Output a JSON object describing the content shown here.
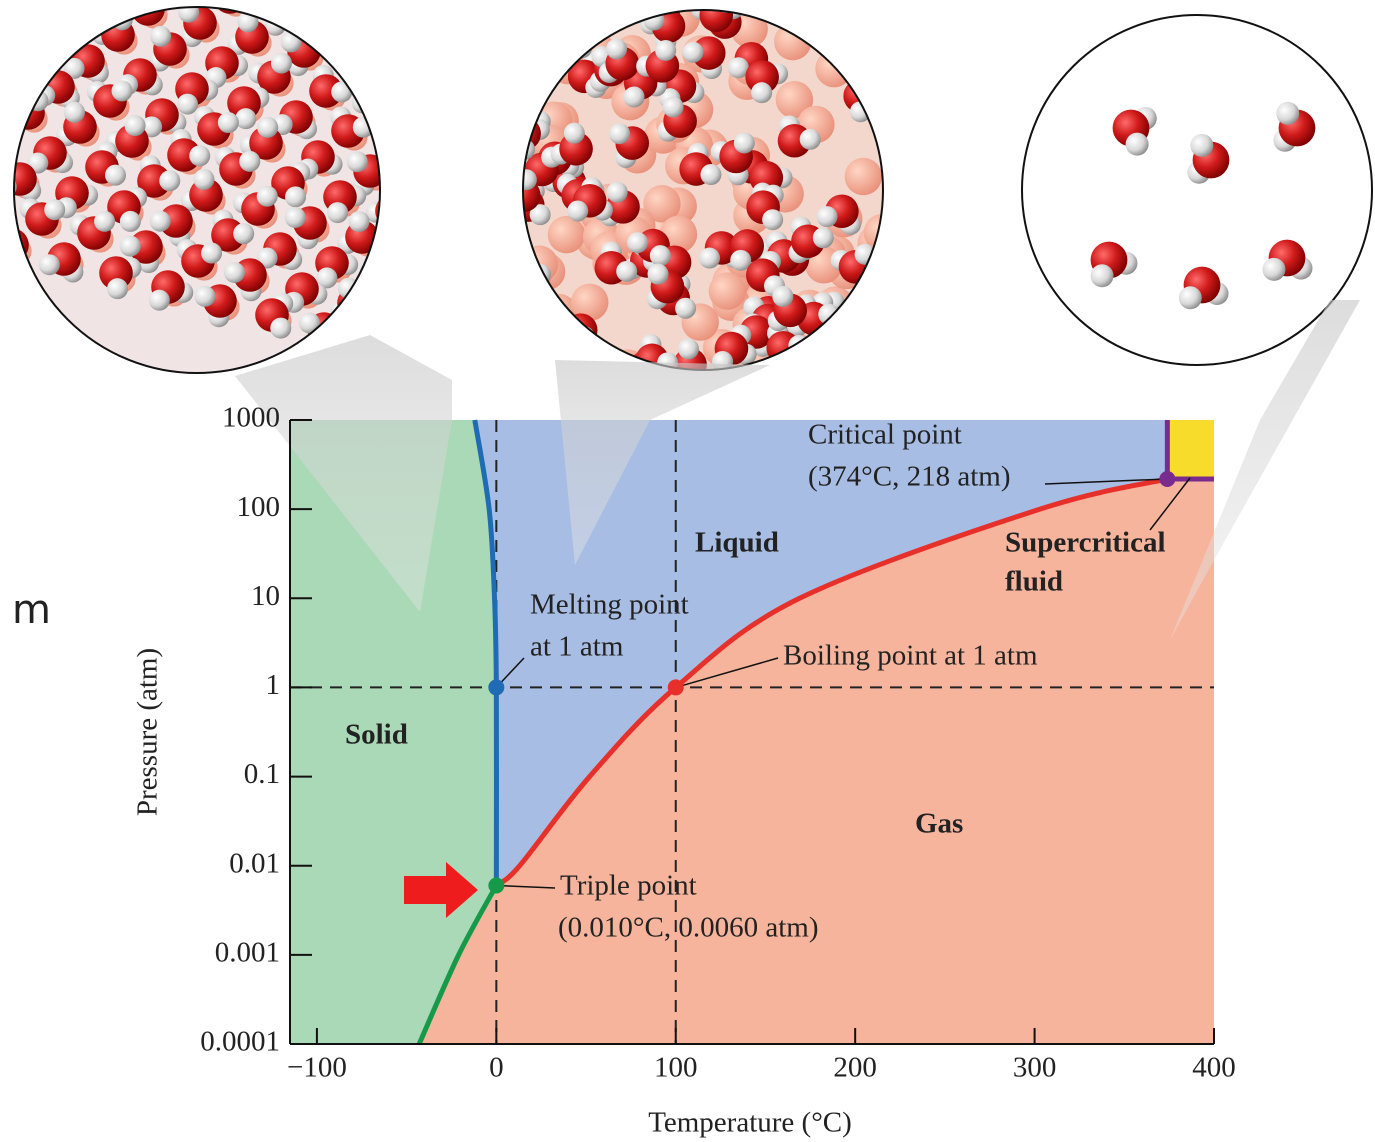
{
  "chart_data": {
    "type": "phase",
    "x_label": "Temperature (°C)",
    "y_label": "Pressure (atm)",
    "xlim": [
      -115,
      400
    ],
    "ylim": [
      0.0001,
      1000
    ],
    "log_y": true,
    "xticks": [
      {
        "value": -100,
        "label": "−100"
      },
      0,
      100,
      200,
      300,
      400
    ],
    "yticks": [
      0.0001,
      0.001,
      0.01,
      0.1,
      1,
      10,
      100,
      1000
    ],
    "regions": [
      {
        "lines": [
          "Solid"
        ],
        "color": "#a9d9b6"
      },
      {
        "lines": [
          "Liquid"
        ],
        "color": "#a8bde4"
      },
      {
        "lines": [
          "Gas"
        ],
        "color": "#f7b49c"
      },
      {
        "lines": [
          "Supercritical",
          "fluid"
        ],
        "color": "#f8dc2c"
      }
    ],
    "curves": [
      {
        "color": "#169a4a",
        "x": [
          -43,
          -21,
          0.01
        ],
        "y": [
          0.0001,
          0.001,
          0.006
        ]
      },
      {
        "color": "#1f6cb4",
        "x": [
          0.01,
          0,
          -1,
          -4,
          -12
        ],
        "y": [
          0.006,
          1,
          10,
          100,
          1000
        ]
      },
      {
        "color": "#e8302a",
        "x": [
          0.01,
          13,
          52,
          100,
          169,
          303,
          374
        ],
        "y": [
          0.006,
          0.01,
          0.1,
          1,
          10,
          100,
          218
        ]
      }
    ],
    "critical_color": "#7a2c8e",
    "points": [
      {
        "lines": [
          "Triple point",
          "(0.010°C, 0.0060 atm)"
        ],
        "x": 0.01,
        "y": 0.006,
        "color": "#169a4a"
      },
      {
        "lines": [
          "Melting point",
          "at 1 atm"
        ],
        "x": 0,
        "y": 1,
        "color": "#1f6cb4"
      },
      {
        "lines": [
          "Boiling point at 1 atm"
        ],
        "x": 100,
        "y": 1,
        "color": "#e8302a"
      },
      {
        "lines": [
          "Critical point",
          "(374°C, 218 atm)"
        ],
        "x": 374,
        "y": 218,
        "color": "#7a2c8e"
      }
    ],
    "ref_x": [
      0,
      100
    ],
    "ref_y": [
      1
    ],
    "margin_text": [
      "m"
    ]
  }
}
